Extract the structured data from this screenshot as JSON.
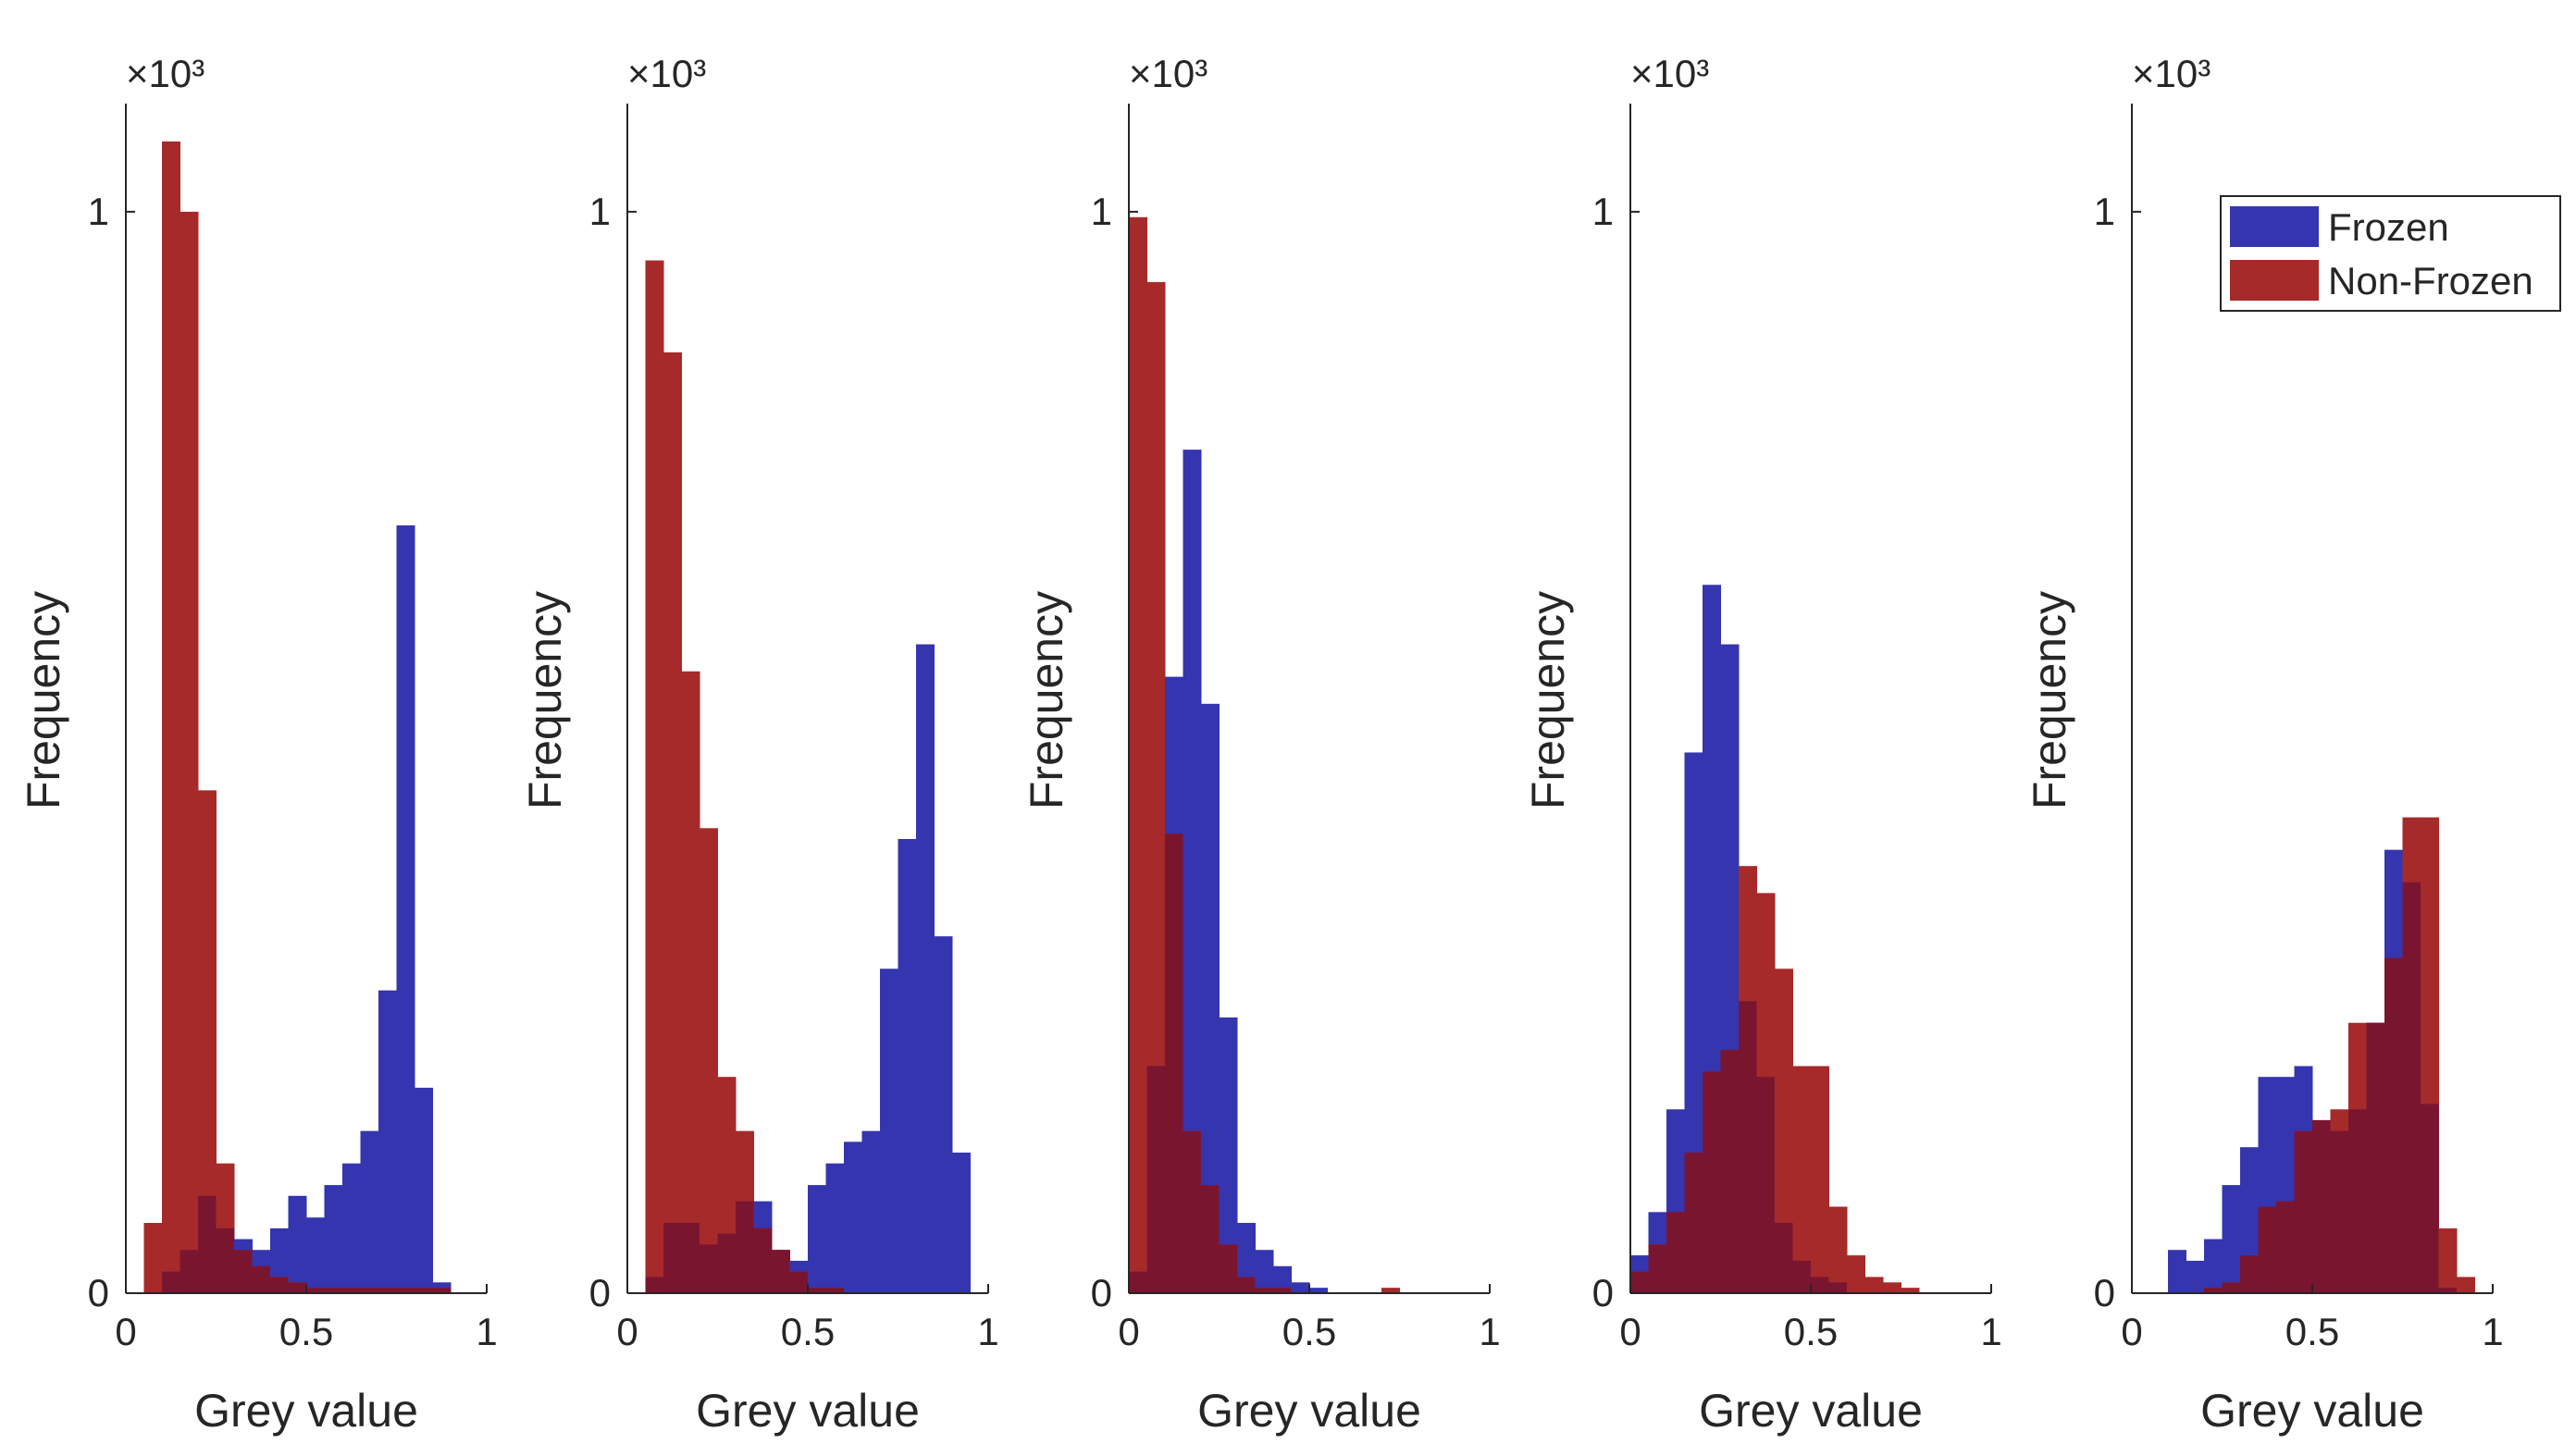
{
  "colors": {
    "frozen": "#3535b0",
    "nonfrozen": "#a62a2a",
    "overlap": "#7a1530",
    "axis": "#262626"
  },
  "legend": {
    "items": [
      "Frozen",
      "Non-Frozen"
    ],
    "placement": "top-right of last panel"
  },
  "chart_data": [
    {
      "type": "bar",
      "xlabel": "Grey value",
      "ylabel": "Frequency",
      "y_exponent": "×10³",
      "xlim": [
        0,
        1
      ],
      "ylim": [
        0,
        1.1
      ],
      "xticks": [
        "0",
        "0.5",
        "1"
      ],
      "yticks": [
        "0",
        "1"
      ],
      "bin_width": 0.05,
      "bin_starts": [
        0.05,
        0.1,
        0.15,
        0.2,
        0.25,
        0.3,
        0.35,
        0.4,
        0.45,
        0.5,
        0.55,
        0.6,
        0.65,
        0.7,
        0.75,
        0.8,
        0.85,
        0.9
      ],
      "series": [
        {
          "name": "Frozen",
          "values": [
            0.0,
            0.02,
            0.04,
            0.09,
            0.06,
            0.05,
            0.04,
            0.06,
            0.09,
            0.07,
            0.1,
            0.12,
            0.15,
            0.28,
            0.71,
            0.19,
            0.01,
            0.0
          ]
        },
        {
          "name": "Non-Frozen",
          "values": [
            0.065,
            1.065,
            1.0,
            0.465,
            0.12,
            0.04,
            0.025,
            0.015,
            0.01,
            0.005,
            0.005,
            0.005,
            0.005,
            0.005,
            0.005,
            0.005,
            0.005,
            0.0
          ]
        }
      ]
    },
    {
      "type": "bar",
      "xlabel": "Grey value",
      "ylabel": "Frequency",
      "y_exponent": "×10³",
      "xlim": [
        0,
        1
      ],
      "ylim": [
        0,
        1.1
      ],
      "xticks": [
        "0",
        "0.5",
        "1"
      ],
      "yticks": [
        "0",
        "1"
      ],
      "bin_width": 0.05,
      "bin_starts": [
        0.05,
        0.1,
        0.15,
        0.2,
        0.25,
        0.3,
        0.35,
        0.4,
        0.45,
        0.5,
        0.55,
        0.6,
        0.65,
        0.7,
        0.75,
        0.8,
        0.85,
        0.9,
        0.95
      ],
      "series": [
        {
          "name": "Frozen",
          "values": [
            0.015,
            0.065,
            0.065,
            0.045,
            0.055,
            0.085,
            0.085,
            0.04,
            0.03,
            0.1,
            0.12,
            0.14,
            0.15,
            0.3,
            0.42,
            0.6,
            0.33,
            0.13,
            0.0
          ]
        },
        {
          "name": "Non-Frozen",
          "values": [
            0.955,
            0.87,
            0.575,
            0.43,
            0.2,
            0.15,
            0.06,
            0.04,
            0.02,
            0.005,
            0.005,
            0.0,
            0.0,
            0.0,
            0.0,
            0.0,
            0.0,
            0.0,
            0.0
          ]
        }
      ]
    },
    {
      "type": "bar",
      "xlabel": "Grey value",
      "ylabel": "Frequency",
      "y_exponent": "×10³",
      "xlim": [
        0,
        1
      ],
      "ylim": [
        0,
        1.1
      ],
      "xticks": [
        "0",
        "0.5",
        "1"
      ],
      "yticks": [
        "0",
        "1"
      ],
      "bin_width": 0.05,
      "bin_starts": [
        0.0,
        0.05,
        0.1,
        0.15,
        0.2,
        0.25,
        0.3,
        0.35,
        0.4,
        0.45,
        0.5,
        0.55,
        0.6,
        0.65,
        0.7,
        0.75
      ],
      "series": [
        {
          "name": "Frozen",
          "values": [
            0.02,
            0.21,
            0.57,
            0.78,
            0.545,
            0.255,
            0.065,
            0.04,
            0.025,
            0.01,
            0.005,
            0.0,
            0.0,
            0.0,
            0.0,
            0.0
          ]
        },
        {
          "name": "Non-Frozen",
          "values": [
            0.995,
            0.935,
            0.425,
            0.15,
            0.1,
            0.045,
            0.015,
            0.005,
            0.005,
            0.0,
            0.0,
            0.0,
            0.0,
            0.0,
            0.005,
            0.0
          ]
        }
      ]
    },
    {
      "type": "bar",
      "xlabel": "Grey value",
      "ylabel": "Frequency",
      "y_exponent": "×10³",
      "xlim": [
        0,
        1
      ],
      "ylim": [
        0,
        1.1
      ],
      "xticks": [
        "0",
        "0.5",
        "1"
      ],
      "yticks": [
        "0",
        "1"
      ],
      "bin_width": 0.05,
      "bin_starts": [
        0.0,
        0.05,
        0.1,
        0.15,
        0.2,
        0.25,
        0.3,
        0.35,
        0.4,
        0.45,
        0.5,
        0.55,
        0.6,
        0.65,
        0.7,
        0.75,
        0.8
      ],
      "series": [
        {
          "name": "Frozen",
          "values": [
            0.035,
            0.075,
            0.17,
            0.5,
            0.655,
            0.6,
            0.27,
            0.2,
            0.065,
            0.03,
            0.015,
            0.01,
            0.0,
            0.0,
            0.0,
            0.0,
            0.0
          ]
        },
        {
          "name": "Non-Frozen",
          "values": [
            0.02,
            0.045,
            0.075,
            0.13,
            0.205,
            0.225,
            0.395,
            0.37,
            0.3,
            0.21,
            0.21,
            0.08,
            0.035,
            0.015,
            0.01,
            0.005,
            0.0
          ]
        }
      ]
    },
    {
      "type": "bar",
      "xlabel": "Grey value",
      "ylabel": "Frequency",
      "y_exponent": "×10³",
      "xlim": [
        0,
        1
      ],
      "ylim": [
        0,
        1.1
      ],
      "xticks": [
        "0",
        "0.5",
        "1"
      ],
      "yticks": [
        "0",
        "1"
      ],
      "bin_width": 0.05,
      "bin_starts": [
        0.1,
        0.15,
        0.2,
        0.25,
        0.3,
        0.35,
        0.4,
        0.45,
        0.5,
        0.55,
        0.6,
        0.65,
        0.7,
        0.75,
        0.8,
        0.85,
        0.9
      ],
      "series": [
        {
          "name": "Frozen",
          "values": [
            0.04,
            0.03,
            0.05,
            0.1,
            0.135,
            0.2,
            0.2,
            0.21,
            0.16,
            0.15,
            0.17,
            0.25,
            0.41,
            0.38,
            0.175,
            0.005,
            0.0
          ]
        },
        {
          "name": "Non-Frozen",
          "values": [
            0.0,
            0.0,
            0.005,
            0.01,
            0.035,
            0.08,
            0.085,
            0.15,
            0.16,
            0.17,
            0.25,
            0.25,
            0.31,
            0.44,
            0.44,
            0.06,
            0.015
          ]
        }
      ]
    }
  ]
}
